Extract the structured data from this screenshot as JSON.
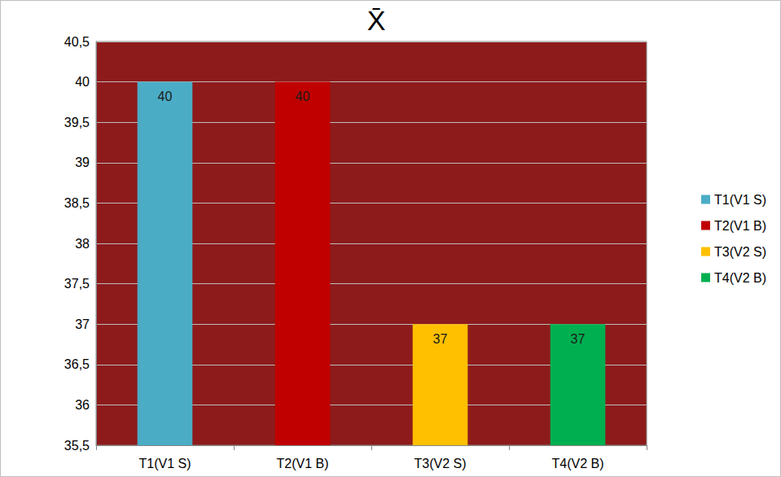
{
  "chart_data": {
    "type": "bar",
    "title": "X̄",
    "categories": [
      "T1(V1 S)",
      "T2(V1 B)",
      "T3(V2 S)",
      "T4(V2 B)"
    ],
    "values": [
      40,
      40,
      37,
      37
    ],
    "colors": [
      "#4bacc6",
      "#c00000",
      "#ffc000",
      "#00b050"
    ],
    "ylim": [
      35.5,
      40.5
    ],
    "yticks": [
      {
        "value": 35.5,
        "label": "35,5"
      },
      36,
      {
        "value": 36.5,
        "label": "36,5"
      },
      37,
      {
        "value": 37.5,
        "label": "37,5"
      },
      38,
      {
        "value": 38.5,
        "label": "38,5"
      },
      39,
      {
        "value": 39.5,
        "label": "39,5"
      },
      40,
      {
        "value": 40.5,
        "label": "40,5"
      }
    ],
    "grid": true,
    "legend": "right",
    "data_labels": true
  }
}
